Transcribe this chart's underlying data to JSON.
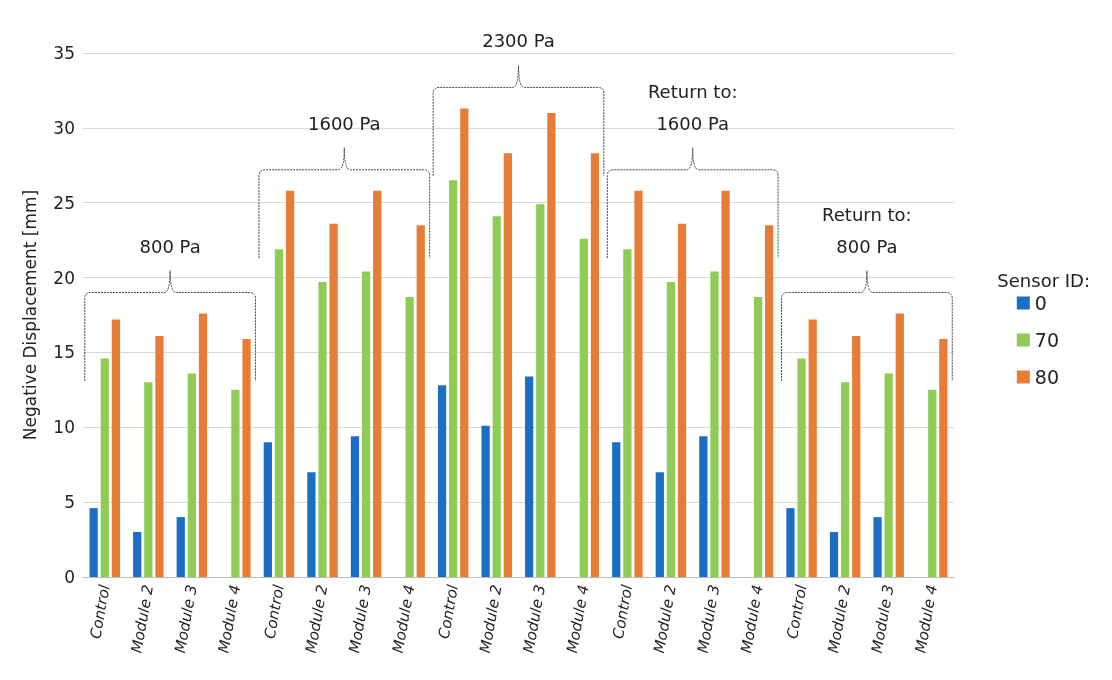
{
  "chart_data": {
    "type": "bar",
    "categories": [
      "Control",
      "Module 2",
      "Module 3",
      "Module 4",
      "Control",
      "Module 2",
      "Module 3",
      "Module 4",
      "Control",
      "Module 2",
      "Module 3",
      "Module 4",
      "Control",
      "Module 2",
      "Module 3",
      "Module 4",
      "Control",
      "Module 2",
      "Module 3",
      "Module 4"
    ],
    "series": [
      {
        "name": "0",
        "color": "#1b6fc2",
        "values": [
          4.6,
          3.0,
          4.0,
          null,
          9.0,
          7.0,
          9.4,
          null,
          12.8,
          10.1,
          13.4,
          null,
          9.0,
          7.0,
          9.4,
          null,
          4.6,
          3.0,
          4.0,
          null
        ]
      },
      {
        "name": "70",
        "color": "#8fcc55",
        "values": [
          14.6,
          13.0,
          13.6,
          12.5,
          21.9,
          19.7,
          20.4,
          18.7,
          26.5,
          24.1,
          24.9,
          22.6,
          21.9,
          19.7,
          20.4,
          18.7,
          14.6,
          13.0,
          13.6,
          12.5
        ]
      },
      {
        "name": "80",
        "color": "#e67c36",
        "values": [
          17.2,
          16.1,
          17.6,
          15.9,
          25.8,
          23.6,
          25.8,
          23.5,
          31.3,
          28.3,
          31.0,
          28.3,
          25.8,
          23.6,
          25.8,
          23.5,
          17.2,
          16.1,
          17.6,
          15.9
        ]
      }
    ],
    "ylabel": "Negative Displacement [mm]",
    "legend_title": "Sensor ID:",
    "annotations": [
      "800 Pa",
      "1600 Pa",
      "2300 Pa",
      "Return to:\n1600 Pa",
      "Return to:\n800 Pa"
    ],
    "ylim": [
      0,
      35
    ],
    "yticks": [
      0,
      5,
      10,
      15,
      20,
      25,
      30,
      35
    ],
    "grid": "y",
    "legend": "right"
  }
}
